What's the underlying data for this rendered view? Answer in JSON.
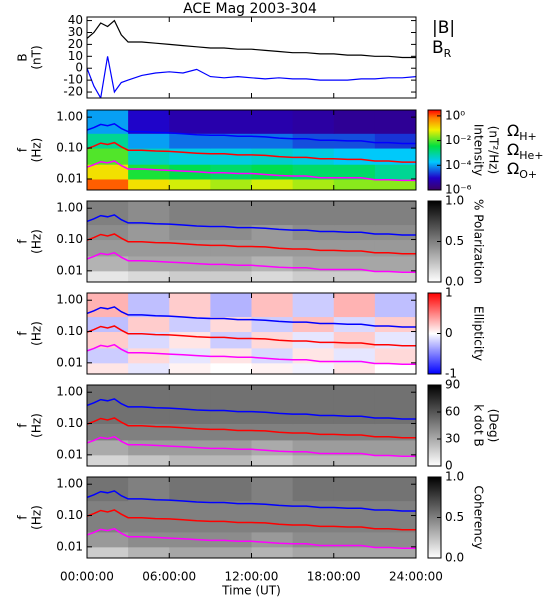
{
  "chart_data": [
    {
      "type": "line",
      "title": "ACE Mag 2003-304",
      "ylabel": [
        "B",
        "(nT)"
      ],
      "xlim": [
        0,
        24
      ],
      "ylim": [
        -25,
        43
      ],
      "yticks": [
        40,
        30,
        20,
        10,
        0,
        -10,
        -20
      ],
      "x": [
        0,
        0.5,
        1,
        1.5,
        2,
        2.5,
        3,
        4,
        5,
        6,
        7,
        8,
        9,
        10,
        11,
        12,
        13,
        14,
        15,
        16,
        17,
        18,
        19,
        20,
        21,
        22,
        23,
        24
      ],
      "series": [
        {
          "name": "|B|",
          "color": "#000000",
          "values": [
            25,
            30,
            38,
            35,
            40,
            28,
            22,
            22,
            21,
            20,
            19,
            18,
            17,
            17,
            16,
            16,
            15,
            14,
            13,
            13,
            12,
            12,
            11,
            11,
            10,
            10,
            9,
            9
          ]
        },
        {
          "name": "BR",
          "color": "#0000ff",
          "values": [
            0,
            -15,
            -25,
            10,
            -20,
            -12,
            -10,
            -6,
            -4,
            -3,
            -4,
            -1,
            -7,
            -8,
            -7,
            -8,
            -9,
            -8,
            -9,
            -9,
            -10,
            -10,
            -10,
            -9,
            -9,
            -8,
            -8,
            -7
          ]
        }
      ]
    },
    {
      "type": "spectrogram",
      "ylabel": [
        "f",
        "(Hz)"
      ],
      "xlim": [
        0,
        24
      ],
      "ylim": [
        0.0044,
        1.7
      ],
      "ylog": true,
      "yticks": [
        {
          "value": 1,
          "label": "1.00"
        },
        {
          "value": 0.1,
          "label": "0.10"
        },
        {
          "value": 0.01,
          "label": "0.01"
        }
      ],
      "t_bins": [
        0,
        3,
        6,
        9,
        12,
        15,
        18,
        21,
        24
      ],
      "f_bins": [
        0.0044,
        0.01,
        0.03,
        0.1,
        0.3,
        1.7
      ],
      "z": [
        [
          1,
          0.1,
          0.05,
          0.03,
          0.05,
          0.03,
          0.02,
          0.02
        ],
        [
          0.1,
          0.005,
          0.003,
          0.002,
          0.003,
          0.002,
          0.002,
          0.001
        ],
        [
          0.01,
          0.0005,
          0.0003,
          0.0003,
          0.0004,
          0.0003,
          0.0002,
          0.0002
        ],
        [
          0.001,
          0.0001,
          5e-05,
          5e-05,
          5e-05,
          3e-05,
          3e-05,
          2e-05
        ],
        [
          0.0001,
          1e-05,
          5e-06,
          5e-06,
          5e-06,
          4e-06,
          3e-06,
          3e-06
        ]
      ],
      "colormap": "rainbow",
      "clim": [
        1e-06,
        3
      ],
      "clog": true,
      "cticks": [
        {
          "value": 1,
          "label": "10⁰"
        },
        {
          "value": 0.01,
          "label": "10⁻²"
        },
        {
          "value": 0.0001,
          "label": "10⁻⁴"
        },
        {
          "value": 1e-06,
          "label": "10⁻⁶"
        }
      ],
      "clabel": [
        "Intensity",
        "(nT²/Hz)"
      ],
      "x": [
        0,
        0.5,
        1,
        1.5,
        2,
        2.5,
        3,
        4,
        5,
        6,
        7,
        8,
        9,
        10,
        11,
        12,
        13,
        14,
        15,
        16,
        17,
        18,
        19,
        20,
        21,
        22,
        23,
        24
      ],
      "series": [
        {
          "name": "ΩH+",
          "color": "#0000ff",
          "values": [
            0.38,
            0.46,
            0.58,
            0.53,
            0.61,
            0.43,
            0.34,
            0.34,
            0.32,
            0.31,
            0.29,
            0.27,
            0.26,
            0.26,
            0.24,
            0.24,
            0.23,
            0.21,
            0.2,
            0.2,
            0.18,
            0.18,
            0.17,
            0.17,
            0.15,
            0.15,
            0.14,
            0.14
          ]
        },
        {
          "name": "ΩHe+",
          "color": "#ff0000",
          "values": [
            0.095,
            0.115,
            0.145,
            0.13,
            0.15,
            0.11,
            0.085,
            0.085,
            0.08,
            0.078,
            0.073,
            0.068,
            0.065,
            0.065,
            0.06,
            0.06,
            0.058,
            0.053,
            0.05,
            0.05,
            0.045,
            0.045,
            0.043,
            0.043,
            0.038,
            0.038,
            0.035,
            0.035
          ]
        },
        {
          "name": "ΩO+",
          "color": "#ff00ff",
          "values": [
            0.024,
            0.029,
            0.036,
            0.033,
            0.038,
            0.027,
            0.021,
            0.021,
            0.02,
            0.019,
            0.018,
            0.017,
            0.016,
            0.016,
            0.015,
            0.015,
            0.014,
            0.013,
            0.0125,
            0.0125,
            0.011,
            0.011,
            0.011,
            0.011,
            0.0095,
            0.0095,
            0.009,
            0.009
          ]
        }
      ]
    },
    {
      "type": "spectrogram",
      "ylabel": [
        "f",
        "(Hz)"
      ],
      "xlim": [
        0,
        24
      ],
      "ylim": [
        0.0044,
        1.7
      ],
      "ylog": true,
      "yticks": [
        {
          "value": 1,
          "label": "1.00"
        },
        {
          "value": 0.1,
          "label": "0.10"
        },
        {
          "value": 0.01,
          "label": "0.01"
        }
      ],
      "t_bins": [
        0,
        3,
        6,
        9,
        12,
        15,
        18,
        21,
        24
      ],
      "f_bins": [
        0.0044,
        0.01,
        0.03,
        0.1,
        0.3,
        1.7
      ],
      "z": [
        [
          0.1,
          0.15,
          0.2,
          0.2,
          0.15,
          0.2,
          0.2,
          0.2
        ],
        [
          0.3,
          0.35,
          0.35,
          0.35,
          0.3,
          0.35,
          0.35,
          0.35
        ],
        [
          0.4,
          0.4,
          0.4,
          0.4,
          0.4,
          0.4,
          0.4,
          0.4
        ],
        [
          0.45,
          0.4,
          0.45,
          0.45,
          0.4,
          0.45,
          0.45,
          0.45
        ],
        [
          0.5,
          0.45,
          0.5,
          0.5,
          0.5,
          0.5,
          0.5,
          0.5
        ]
      ],
      "colormap": "gray",
      "clim": [
        0,
        1
      ],
      "clog": false,
      "cticks": [
        {
          "value": 0,
          "label": "0.0"
        },
        {
          "value": 0.5,
          "label": "0.5"
        },
        {
          "value": 1,
          "label": "1.0"
        }
      ],
      "clabel": [
        "% Polarization"
      ]
    },
    {
      "type": "spectrogram",
      "ylabel": [
        "f",
        "(Hz)"
      ],
      "xlim": [
        0,
        24
      ],
      "ylim": [
        0.0044,
        1.7
      ],
      "ylog": true,
      "yticks": [
        {
          "value": 1,
          "label": "1.00"
        },
        {
          "value": 0.1,
          "label": "0.10"
        },
        {
          "value": 0.01,
          "label": "0.01"
        }
      ],
      "t_bins": [
        0,
        3,
        6,
        9,
        12,
        15,
        18,
        21,
        24
      ],
      "f_bins": [
        0.0044,
        0.01,
        0.03,
        0.1,
        0.3,
        1.7
      ],
      "z": [
        [
          0.1,
          -0.1,
          0.05,
          0,
          0.05,
          -0.05,
          0.1,
          0
        ],
        [
          -0.2,
          0.15,
          -0.1,
          0.1,
          -0.15,
          0.1,
          -0.1,
          0.15
        ],
        [
          0.2,
          -0.15,
          0.1,
          -0.2,
          0.15,
          -0.1,
          0.2,
          -0.1
        ],
        [
          -0.25,
          0.2,
          -0.2,
          0.15,
          -0.2,
          0.25,
          -0.15,
          0.2
        ],
        [
          0.3,
          -0.25,
          0.2,
          -0.3,
          0.25,
          -0.2,
          0.3,
          -0.25
        ]
      ],
      "colormap": "bwr",
      "clim": [
        -1,
        1
      ],
      "clog": false,
      "cticks": [
        -1,
        0,
        1
      ],
      "clabel": [
        "Ellipticity"
      ]
    },
    {
      "type": "spectrogram",
      "ylabel": [
        "f",
        "(Hz)"
      ],
      "xlim": [
        0,
        24
      ],
      "ylim": [
        0.0044,
        1.7
      ],
      "ylog": true,
      "yticks": [
        {
          "value": 1,
          "label": "1.00"
        },
        {
          "value": 0.1,
          "label": "0.10"
        },
        {
          "value": 0.01,
          "label": "0.01"
        }
      ],
      "t_bins": [
        0,
        3,
        6,
        9,
        12,
        15,
        18,
        21,
        24
      ],
      "f_bins": [
        0.0044,
        0.01,
        0.03,
        0.1,
        0.3,
        1.7
      ],
      "z": [
        [
          15,
          20,
          25,
          25,
          20,
          25,
          25,
          25
        ],
        [
          30,
          35,
          35,
          35,
          30,
          35,
          35,
          35
        ],
        [
          45,
          45,
          45,
          45,
          45,
          45,
          45,
          45
        ],
        [
          50,
          50,
          50,
          50,
          50,
          50,
          50,
          50
        ],
        [
          50,
          50,
          50,
          50,
          50,
          50,
          50,
          50
        ]
      ],
      "colormap": "gray",
      "clim": [
        0,
        90
      ],
      "clog": false,
      "cticks": [
        0,
        30,
        60,
        90
      ],
      "clabel": [
        "k dot B",
        "(Deg)"
      ]
    },
    {
      "type": "spectrogram",
      "ylabel": [
        "f",
        "(Hz)"
      ],
      "xlim": [
        0,
        24
      ],
      "ylim": [
        0.0044,
        1.7
      ],
      "ylog": true,
      "yticks": [
        {
          "value": 1,
          "label": "1.00"
        },
        {
          "value": 0.1,
          "label": "0.10"
        },
        {
          "value": 0.01,
          "label": "0.01"
        }
      ],
      "t_bins": [
        0,
        3,
        6,
        9,
        12,
        15,
        18,
        21,
        24
      ],
      "f_bins": [
        0.0044,
        0.01,
        0.03,
        0.1,
        0.3,
        1.7
      ],
      "z": [
        [
          0.2,
          0.3,
          0.35,
          0.35,
          0.3,
          0.35,
          0.35,
          0.35
        ],
        [
          0.4,
          0.45,
          0.45,
          0.45,
          0.4,
          0.45,
          0.45,
          0.45
        ],
        [
          0.5,
          0.5,
          0.5,
          0.5,
          0.5,
          0.5,
          0.5,
          0.5
        ],
        [
          0.5,
          0.5,
          0.5,
          0.5,
          0.5,
          0.5,
          0.5,
          0.5
        ],
        [
          0.55,
          0.5,
          0.55,
          0.55,
          0.5,
          0.55,
          0.55,
          0.55
        ]
      ],
      "colormap": "gray",
      "clim": [
        0,
        1
      ],
      "clog": false,
      "cticks": [
        {
          "value": 0,
          "label": "0.0"
        },
        {
          "value": 0.5,
          "label": "0.5"
        },
        {
          "value": 1,
          "label": "1.0"
        }
      ],
      "clabel": [
        "Coherency"
      ],
      "xticks": [
        {
          "value": 0,
          "label": "00:00:00"
        },
        {
          "value": 6,
          "label": "06:00:00"
        },
        {
          "value": 12,
          "label": "12:00:00"
        },
        {
          "value": 18,
          "label": "18:00:00"
        },
        {
          "value": 24,
          "label": "24:00:00"
        }
      ],
      "xlabel": "Time (UT)"
    }
  ]
}
